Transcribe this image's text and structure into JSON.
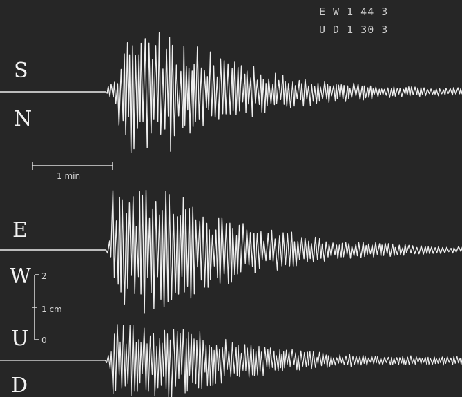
{
  "header": {
    "line1": "E W  1  44 3",
    "line2": "U D  1  30 3"
  },
  "channels": [
    {
      "id": "ns",
      "top_label": "S",
      "bottom_label": "N"
    },
    {
      "id": "ew",
      "top_label": "E",
      "bottom_label": "W"
    },
    {
      "id": "ud",
      "top_label": "U",
      "bottom_label": "D"
    }
  ],
  "time_scale": {
    "label": "1 min"
  },
  "amp_scale": {
    "max_label": "2",
    "mid_label": "1 cm",
    "min_label": "0"
  },
  "colors": {
    "background": "#262626",
    "trace": "#eeeeee"
  }
}
